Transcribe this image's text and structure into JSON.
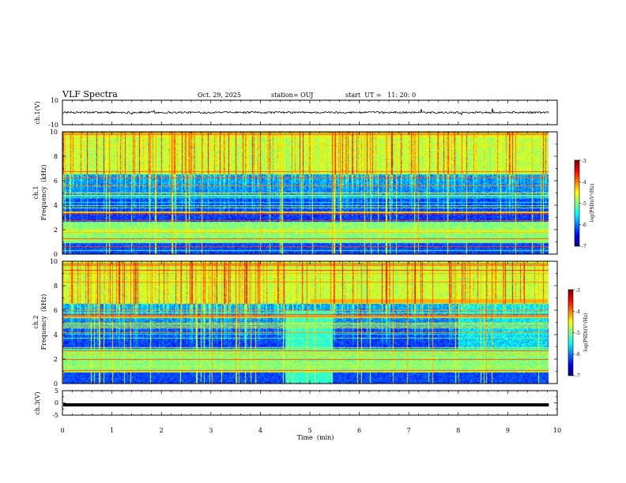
{
  "header": {
    "title": "VLF Spectra",
    "date": "Oct. 29, 2025",
    "station": "station= OUJ",
    "start": "start  UT =   11: 20: 0"
  },
  "chart_data": [
    {
      "type": "line",
      "name": "ch1-waveform",
      "ylabel": "ch.1(V)",
      "ylim": [
        -10,
        10
      ],
      "yticks": [
        "10",
        "-10"
      ],
      "baseline": 0,
      "xlim": [
        0,
        10
      ]
    },
    {
      "type": "heatmap",
      "name": "ch1-spectrogram",
      "ylabel": "ch.1",
      "ylabel2": "Frequency  (kHz)",
      "ylim": [
        0,
        10
      ],
      "yticks": [
        "0",
        "2",
        "4",
        "6",
        "8",
        "10"
      ],
      "xlim": [
        0,
        10
      ],
      "data_end_min": 9.83,
      "colorbar": {
        "label": "log(PSD)(V²/Hz)",
        "range": [
          -7,
          -3
        ],
        "ticks": [
          "-7",
          "-6",
          "-5",
          "-4",
          "-3"
        ]
      }
    },
    {
      "type": "heatmap",
      "name": "ch2-spectrogram",
      "ylabel": "ch.2",
      "ylabel2": "Frequency  (kHz)",
      "ylim": [
        0,
        10
      ],
      "yticks": [
        "0",
        "2",
        "4",
        "6",
        "8",
        "10"
      ],
      "xlim": [
        0,
        10
      ],
      "data_end_min": 9.83,
      "colorbar": {
        "label": "log(PSD)(V²/Hz)",
        "range": [
          -7,
          -3
        ],
        "ticks": [
          "-7",
          "-6",
          "-5",
          "-4",
          "-3"
        ]
      }
    },
    {
      "type": "line",
      "name": "ch3-waveform",
      "ylabel": "ch.3(V)",
      "ylim": [
        -5,
        5
      ],
      "yticks": [
        "5",
        "0",
        "-5"
      ],
      "baseline": -0.8,
      "xlim": [
        0,
        10
      ]
    }
  ],
  "xaxis": {
    "label": "Time  (min)",
    "ticks": [
      "0",
      "1",
      "2",
      "3",
      "4",
      "5",
      "6",
      "7",
      "8",
      "9",
      "10"
    ]
  }
}
